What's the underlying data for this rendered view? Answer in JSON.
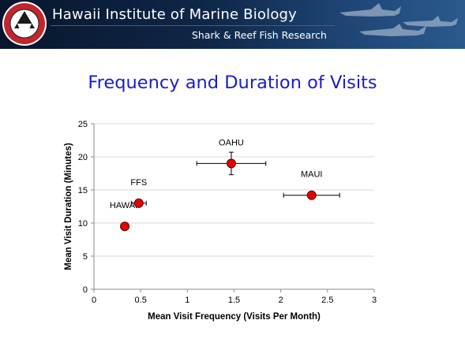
{
  "header": {
    "title": "Hawaii Institute of Marine Biology",
    "subtitle": "Shark & Reef Fish Research",
    "logo_icon": "shark-seal-logo-icon",
    "colors": {
      "banner_dark": "#0b1a33",
      "banner_mid": "#1d3f6e",
      "rule": "#b5333a"
    }
  },
  "slide": {
    "title": "Frequency and Duration of Visits",
    "title_color": "#1c1ccf"
  },
  "chart_data": {
    "type": "scatter",
    "title": "",
    "xlabel": "Mean Visit Frequency (Visits Per Month)",
    "ylabel": "Mean Visit Duration (Minutes)",
    "xlim": [
      0,
      3
    ],
    "ylim": [
      0,
      25
    ],
    "x_ticks": [
      "0",
      "0.5",
      "1",
      "1.5",
      "2",
      "2.5",
      "3"
    ],
    "y_ticks": [
      "0",
      "5",
      "10",
      "15",
      "20",
      "25"
    ],
    "grid": "horizontal",
    "marker_color": "#e60000",
    "points": [
      {
        "label": "HAWAII",
        "x": 0.33,
        "y": 9.5,
        "x_err": 0,
        "y_err": 0
      },
      {
        "label": "FFS",
        "x": 0.48,
        "y": 13.0,
        "x_err": 0.08,
        "y_err": 0.4
      },
      {
        "label": "OAHU",
        "x": 1.47,
        "y": 19.0,
        "x_err": 0.37,
        "y_err": 1.7
      },
      {
        "label": "MAUI",
        "x": 2.33,
        "y": 14.2,
        "x_err": 0.3,
        "y_err": 0
      }
    ]
  }
}
